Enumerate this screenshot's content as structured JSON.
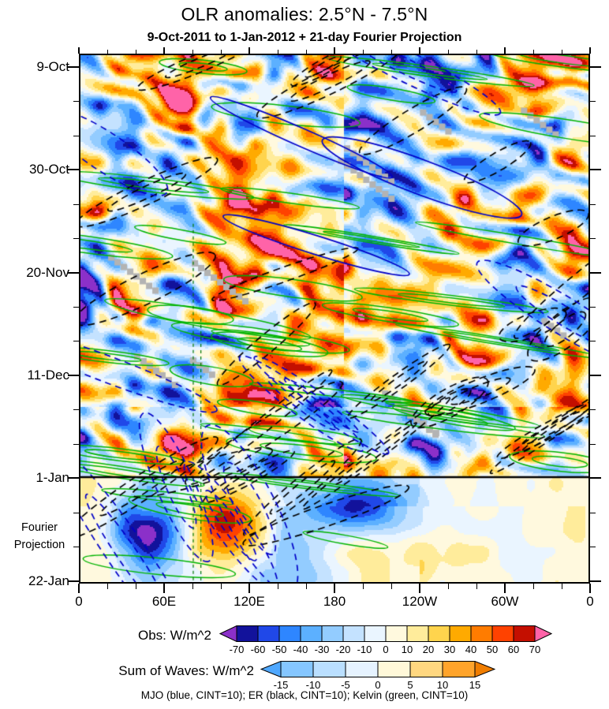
{
  "chart_data": {
    "type": "heatmap",
    "title": "OLR anomalies: 2.5°N - 7.5°N",
    "subtitle": "9-Oct-2011 to 1-Jan-2012 + 21-day Fourier Projection",
    "x_axis": {
      "ticks": [
        "0",
        "60E",
        "120E",
        "180",
        "120W",
        "60W",
        "0"
      ]
    },
    "y_axis": {
      "ticks": [
        "9-Oct",
        "30-Oct",
        "20-Nov",
        "11-Dec",
        "1-Jan",
        "22-Jan"
      ]
    },
    "projection_annotation": "Fourier Projection",
    "projection_start_label": "1-Jan",
    "colorbars": [
      {
        "label": "Obs: W/m^2",
        "ticks": [
          "-70",
          "-60",
          "-50",
          "-40",
          "-30",
          "-20",
          "-10",
          "0",
          "10",
          "20",
          "30",
          "40",
          "50",
          "60",
          "70"
        ],
        "colors": [
          "#8B30C9",
          "#12129B",
          "#2048E8",
          "#2E86FF",
          "#5CB0FF",
          "#93CCFF",
          "#C4E2FF",
          "#EAF5FF",
          "#FFF9DE",
          "#FFEC9B",
          "#FFD44D",
          "#FFAA00",
          "#FF7C00",
          "#FF4200",
          "#C40F00",
          "#FF63A8"
        ]
      },
      {
        "label": "Sum of Waves: W/m^2",
        "ticks": [
          "-15",
          "-10",
          "-5",
          "0",
          "5",
          "10",
          "15"
        ],
        "colors": [
          "#4FA8FF",
          "#85C6FF",
          "#BADFFF",
          "#E6F3FF",
          "#FFF8D9",
          "#FFD780",
          "#FFA42B",
          "#F07D00"
        ]
      }
    ],
    "overlays": [
      {
        "name": "MJO",
        "color": "#0000C8",
        "cint": 10
      },
      {
        "name": "ER",
        "color": "#000000",
        "cint": 10
      },
      {
        "name": "Kelvin",
        "color": "#00B400",
        "cint": 10
      }
    ],
    "caption": "MJO (blue, CINT=10); ER (black, CINT=10); Kelvin (green, CINT=10)"
  }
}
